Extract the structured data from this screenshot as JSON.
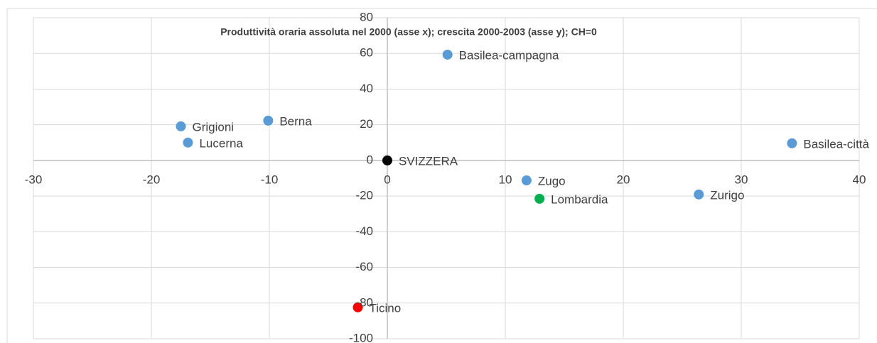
{
  "chart_data": {
    "type": "scatter",
    "title": "Produttività oraria assoluta nel 2000 (asse x); crescita 2000-2003 (asse y); CH=0",
    "xlim": [
      -30,
      40
    ],
    "xticks": [
      -30,
      -20,
      -10,
      0,
      10,
      20,
      30,
      40
    ],
    "ylim": [
      -100,
      80
    ],
    "yticks": [
      -100,
      -80,
      -60,
      -40,
      -20,
      0,
      20,
      40,
      60,
      80
    ],
    "grid": true,
    "series": [
      {
        "name": "Basilea-campagna",
        "color": "#5b9bd5",
        "x": [
          5.1
        ],
        "values": [
          59.3
        ]
      },
      {
        "name": "Berna",
        "color": "#5b9bd5",
        "x": [
          -10.1
        ],
        "values": [
          22.3
        ]
      },
      {
        "name": "Grigioni",
        "color": "#5b9bd5",
        "x": [
          -17.5
        ],
        "values": [
          19.1
        ]
      },
      {
        "name": "Lucerna",
        "color": "#5b9bd5",
        "x": [
          -16.9
        ],
        "values": [
          10
        ]
      },
      {
        "name": "SVIZZERA",
        "color": "#000000",
        "x": [
          0
        ],
        "values": [
          0
        ]
      },
      {
        "name": "Basilea-città",
        "color": "#5b9bd5",
        "x": [
          34.3
        ],
        "values": [
          9.6
        ]
      },
      {
        "name": "Zugo",
        "color": "#5b9bd5",
        "x": [
          11.8
        ],
        "values": [
          -11.2
        ]
      },
      {
        "name": "Lombardia",
        "color": "#00b050",
        "x": [
          12.9
        ],
        "values": [
          -21.5
        ]
      },
      {
        "name": "Zurigo",
        "color": "#5b9bd5",
        "x": [
          26.4
        ],
        "values": [
          -19.1
        ]
      },
      {
        "name": "Ticino",
        "color": "#ff0000",
        "x": [
          -2.5
        ],
        "values": [
          -82.4
        ]
      }
    ]
  }
}
